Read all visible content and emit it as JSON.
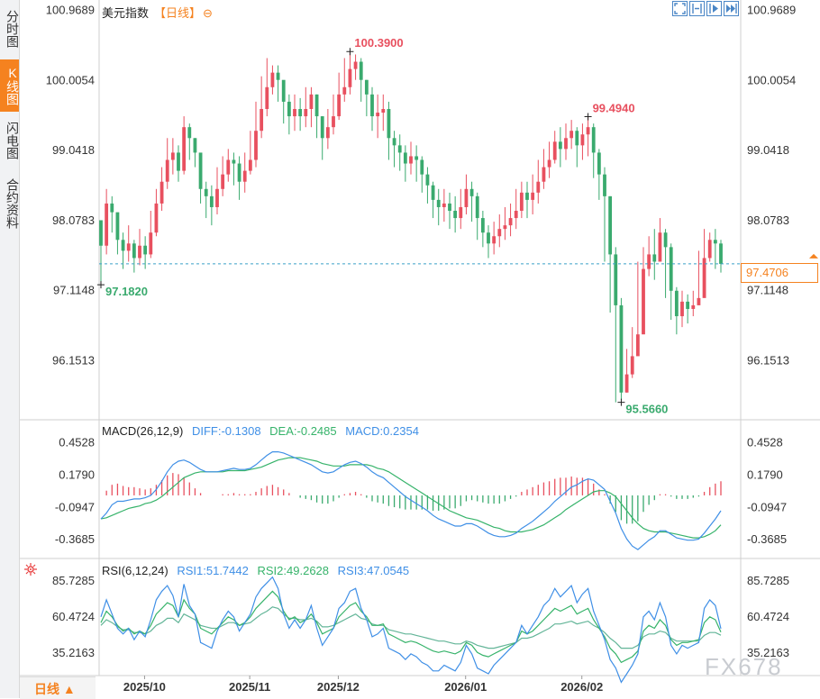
{
  "sidebar": {
    "tabs": [
      {
        "label": "分时图",
        "active": false
      },
      {
        "label": "K线图",
        "active": true
      },
      {
        "label": "闪电图",
        "active": false
      },
      {
        "label": "合约资料",
        "active": false
      }
    ]
  },
  "header": {
    "instrument": "美元指数",
    "period_tag": "【日线】",
    "zoom_icon": "zoom-out-icon"
  },
  "toolbar": {
    "buttons": [
      "fit-icon",
      "range-icon",
      "play-icon",
      "forward-icon"
    ]
  },
  "bottom": {
    "period_label": "日线 ▲"
  },
  "watermark": "FX678",
  "colors": {
    "up": "#e8505f",
    "down": "#3aaa6e",
    "diff": "#3f8fe6",
    "dea": "#36b36a",
    "rsi1": "#3f8fe6",
    "rsi2": "#36b36a",
    "rsi3": "#63b598",
    "accent": "#f5821f"
  },
  "chart_data": [
    {
      "type": "candlestick",
      "panel": "price",
      "y_ticks": [
        "100.9689",
        "100.0054",
        "99.0418",
        "98.0783",
        "97.1148",
        "96.1513"
      ],
      "ylim": [
        95.4,
        101.0
      ],
      "x_ticks": [
        "2025/10",
        "2025/11",
        "2025/12",
        "2026/01",
        "2026/02"
      ],
      "annotations": {
        "high": "100.3900",
        "high2": "99.4940",
        "low": "95.5660",
        "start_low": "97.1820"
      },
      "last_price": "97.4706",
      "series": {
        "close": [
          97.72,
          98.3,
          98.18,
          97.8,
          97.65,
          97.75,
          97.55,
          97.72,
          97.6,
          97.9,
          98.3,
          98.6,
          98.9,
          99.0,
          98.75,
          99.35,
          99.2,
          99.0,
          98.5,
          98.4,
          98.25,
          98.5,
          98.7,
          98.9,
          98.85,
          98.6,
          98.75,
          98.9,
          99.3,
          99.6,
          99.9,
          100.1,
          100.0,
          99.7,
          99.5,
          99.6,
          99.5,
          99.6,
          99.8,
          99.5,
          99.2,
          99.35,
          99.5,
          99.8,
          99.9,
          100.15,
          100.25,
          100.0,
          99.8,
          99.5,
          99.55,
          99.6,
          99.2,
          99.1,
          99.0,
          98.85,
          98.95,
          98.9,
          98.7,
          98.55,
          98.35,
          98.25,
          98.3,
          98.2,
          98.1,
          98.25,
          98.5,
          98.4,
          98.1,
          97.9,
          97.75,
          97.85,
          97.95,
          98.0,
          98.1,
          98.2,
          98.45,
          98.35,
          98.45,
          98.6,
          98.8,
          98.9,
          99.15,
          99.05,
          99.2,
          99.3,
          99.1,
          99.25,
          99.35,
          99.0,
          98.7,
          98.4,
          97.6,
          96.9,
          95.7,
          95.95,
          96.2,
          96.5,
          97.4,
          97.6,
          97.5,
          97.9,
          97.7,
          97.1,
          96.75,
          96.95,
          96.85,
          96.9,
          97.0,
          97.55,
          97.8,
          97.75,
          97.47
        ],
        "high": [
          97.95,
          98.5,
          98.4,
          98.0,
          97.9,
          98.0,
          97.8,
          97.95,
          97.85,
          98.2,
          98.5,
          98.8,
          99.2,
          99.2,
          99.1,
          99.5,
          99.4,
          99.2,
          98.8,
          98.6,
          98.55,
          98.8,
          98.95,
          99.05,
          99.0,
          98.95,
          99.0,
          99.3,
          99.7,
          100.05,
          100.3,
          100.2,
          100.2,
          99.9,
          99.8,
          99.8,
          99.75,
          99.9,
          99.9,
          99.8,
          99.5,
          99.6,
          99.8,
          100.1,
          100.3,
          100.39,
          100.35,
          100.3,
          100.0,
          99.9,
          99.8,
          99.8,
          99.7,
          99.3,
          99.25,
          99.1,
          99.15,
          99.1,
          98.95,
          98.8,
          98.6,
          98.5,
          98.5,
          98.45,
          98.4,
          98.5,
          98.7,
          98.6,
          98.45,
          98.2,
          98.0,
          98.05,
          98.15,
          98.25,
          98.3,
          98.5,
          98.6,
          98.6,
          98.7,
          98.9,
          99.05,
          99.15,
          99.3,
          99.35,
          99.4,
          99.45,
          99.35,
          99.4,
          99.494,
          99.4,
          99.05,
          98.8,
          98.4,
          97.7,
          97.0,
          96.3,
          96.6,
          97.5,
          97.7,
          97.85,
          97.95,
          98.1,
          97.95,
          97.75,
          97.15,
          97.1,
          97.05,
          97.1,
          97.65,
          97.95,
          97.9,
          97.95,
          97.8
        ],
        "low": [
          97.182,
          97.6,
          97.9,
          97.6,
          97.4,
          97.5,
          97.35,
          97.45,
          97.4,
          97.55,
          97.85,
          98.2,
          98.5,
          98.7,
          98.6,
          98.7,
          98.9,
          98.8,
          98.3,
          98.1,
          98.0,
          98.15,
          98.4,
          98.6,
          98.55,
          98.35,
          98.45,
          98.7,
          98.8,
          99.2,
          99.5,
          99.8,
          99.7,
          99.4,
          99.25,
          99.3,
          99.3,
          99.35,
          99.35,
          99.2,
          98.9,
          99.05,
          99.25,
          99.45,
          99.7,
          99.8,
          100.0,
          99.7,
          99.5,
          99.3,
          99.2,
          99.3,
          98.9,
          98.8,
          98.75,
          98.6,
          98.7,
          98.6,
          98.45,
          98.3,
          98.1,
          98.0,
          98.05,
          97.95,
          97.9,
          97.95,
          98.15,
          98.05,
          97.8,
          97.7,
          97.55,
          97.6,
          97.7,
          97.8,
          97.85,
          97.95,
          98.1,
          98.1,
          98.15,
          98.3,
          98.5,
          98.65,
          98.85,
          98.8,
          98.9,
          99.05,
          98.8,
          98.9,
          98.95,
          98.65,
          98.35,
          97.5,
          96.8,
          95.566,
          95.6,
          95.7,
          95.9,
          96.3,
          97.1,
          97.3,
          97.25,
          97.6,
          97.0,
          96.7,
          96.5,
          96.6,
          96.65,
          96.75,
          96.95,
          97.3,
          97.5,
          97.4,
          97.35
        ]
      }
    },
    {
      "type": "line",
      "panel": "macd",
      "title": "MACD(26,12,9)",
      "legend": [
        {
          "name": "DIFF",
          "value": "-0.1308"
        },
        {
          "name": "DEA",
          "value": "-0.2485"
        },
        {
          "name": "MACD",
          "value": "0.2354"
        }
      ],
      "y_ticks": [
        "0.4528",
        "0.1790",
        "-0.0947",
        "-0.3685"
      ],
      "ylim": [
        -0.52,
        0.55
      ],
      "series": {
        "diff": [
          -0.2,
          -0.15,
          -0.08,
          -0.05,
          -0.05,
          -0.04,
          -0.03,
          -0.03,
          -0.02,
          0.0,
          0.05,
          0.12,
          0.2,
          0.26,
          0.29,
          0.3,
          0.28,
          0.25,
          0.22,
          0.2,
          0.2,
          0.2,
          0.21,
          0.22,
          0.23,
          0.22,
          0.22,
          0.23,
          0.26,
          0.3,
          0.34,
          0.37,
          0.37,
          0.36,
          0.34,
          0.32,
          0.3,
          0.28,
          0.26,
          0.23,
          0.2,
          0.19,
          0.2,
          0.23,
          0.26,
          0.28,
          0.29,
          0.27,
          0.24,
          0.2,
          0.17,
          0.15,
          0.11,
          0.07,
          0.03,
          -0.01,
          -0.04,
          -0.07,
          -0.1,
          -0.13,
          -0.17,
          -0.2,
          -0.22,
          -0.24,
          -0.26,
          -0.26,
          -0.24,
          -0.24,
          -0.26,
          -0.29,
          -0.32,
          -0.34,
          -0.35,
          -0.35,
          -0.34,
          -0.32,
          -0.28,
          -0.25,
          -0.22,
          -0.18,
          -0.14,
          -0.1,
          -0.05,
          -0.01,
          0.03,
          0.07,
          0.09,
          0.12,
          0.14,
          0.13,
          0.09,
          0.05,
          -0.05,
          -0.15,
          -0.28,
          -0.37,
          -0.43,
          -0.46,
          -0.42,
          -0.38,
          -0.35,
          -0.3,
          -0.3,
          -0.33,
          -0.36,
          -0.37,
          -0.38,
          -0.38,
          -0.37,
          -0.32,
          -0.26,
          -0.2,
          -0.13
        ],
        "dea": [
          -0.2,
          -0.19,
          -0.17,
          -0.15,
          -0.13,
          -0.11,
          -0.1,
          -0.09,
          -0.07,
          -0.06,
          -0.04,
          -0.01,
          0.03,
          0.07,
          0.11,
          0.15,
          0.17,
          0.19,
          0.2,
          0.2,
          0.2,
          0.2,
          0.2,
          0.21,
          0.21,
          0.21,
          0.21,
          0.22,
          0.23,
          0.24,
          0.26,
          0.28,
          0.3,
          0.31,
          0.32,
          0.32,
          0.32,
          0.31,
          0.3,
          0.29,
          0.27,
          0.26,
          0.25,
          0.25,
          0.25,
          0.26,
          0.26,
          0.26,
          0.26,
          0.25,
          0.23,
          0.22,
          0.2,
          0.17,
          0.14,
          0.11,
          0.08,
          0.05,
          0.02,
          -0.01,
          -0.04,
          -0.07,
          -0.1,
          -0.13,
          -0.15,
          -0.17,
          -0.19,
          -0.2,
          -0.21,
          -0.23,
          -0.25,
          -0.27,
          -0.28,
          -0.3,
          -0.31,
          -0.31,
          -0.31,
          -0.3,
          -0.29,
          -0.27,
          -0.25,
          -0.22,
          -0.19,
          -0.16,
          -0.12,
          -0.09,
          -0.06,
          -0.03,
          0.0,
          0.03,
          0.04,
          0.04,
          0.02,
          -0.01,
          -0.07,
          -0.13,
          -0.19,
          -0.24,
          -0.28,
          -0.3,
          -0.31,
          -0.31,
          -0.31,
          -0.32,
          -0.33,
          -0.34,
          -0.35,
          -0.36,
          -0.36,
          -0.35,
          -0.33,
          -0.3,
          -0.25
        ]
      }
    },
    {
      "type": "line",
      "panel": "rsi",
      "title": "RSI(6,12,24)",
      "legend": [
        {
          "name": "RSI1",
          "value": "51.7442"
        },
        {
          "name": "RSI2",
          "value": "49.2628"
        },
        {
          "name": "RSI3",
          "value": "47.0545"
        }
      ],
      "y_ticks": [
        "85.7285",
        "60.4724",
        "35.2163"
      ],
      "ylim": [
        20,
        96
      ],
      "series": {
        "rsi1": [
          60,
          72,
          62,
          52,
          48,
          52,
          44,
          50,
          46,
          58,
          72,
          78,
          82,
          75,
          60,
          83,
          68,
          62,
          42,
          40,
          38,
          50,
          58,
          64,
          60,
          50,
          56,
          62,
          74,
          80,
          84,
          88,
          80,
          62,
          52,
          58,
          52,
          58,
          68,
          52,
          40,
          46,
          52,
          66,
          70,
          78,
          80,
          66,
          58,
          46,
          48,
          52,
          38,
          36,
          34,
          30,
          34,
          32,
          28,
          26,
          22,
          22,
          26,
          24,
          22,
          28,
          40,
          34,
          24,
          22,
          20,
          26,
          30,
          34,
          38,
          42,
          54,
          48,
          54,
          60,
          68,
          72,
          80,
          74,
          78,
          82,
          70,
          76,
          80,
          64,
          54,
          44,
          30,
          24,
          14,
          20,
          26,
          34,
          60,
          64,
          58,
          70,
          60,
          40,
          34,
          40,
          38,
          40,
          42,
          66,
          72,
          68,
          51.7
        ],
        "rsi2": [
          56,
          64,
          60,
          54,
          50,
          52,
          48,
          50,
          48,
          54,
          62,
          66,
          70,
          68,
          60,
          72,
          66,
          62,
          52,
          50,
          48,
          52,
          56,
          60,
          58,
          54,
          56,
          60,
          66,
          70,
          74,
          78,
          74,
          64,
          58,
          60,
          56,
          58,
          62,
          56,
          48,
          50,
          52,
          60,
          64,
          68,
          70,
          64,
          60,
          54,
          54,
          55,
          48,
          46,
          44,
          42,
          43,
          42,
          40,
          38,
          36,
          35,
          36,
          35,
          34,
          36,
          42,
          40,
          35,
          33,
          32,
          34,
          36,
          38,
          40,
          42,
          50,
          48,
          50,
          54,
          58,
          62,
          66,
          64,
          66,
          68,
          62,
          64,
          66,
          58,
          52,
          46,
          38,
          34,
          28,
          30,
          32,
          36,
          50,
          54,
          52,
          58,
          54,
          44,
          40,
          42,
          42,
          43,
          44,
          56,
          60,
          58,
          49.3
        ],
        "rsi3": [
          54,
          58,
          56,
          53,
          51,
          51,
          49,
          49,
          48,
          50,
          54,
          56,
          59,
          59,
          56,
          62,
          60,
          58,
          54,
          53,
          52,
          52,
          54,
          56,
          56,
          54,
          55,
          56,
          59,
          62,
          64,
          67,
          66,
          62,
          59,
          59,
          58,
          58,
          59,
          57,
          53,
          53,
          54,
          56,
          58,
          60,
          62,
          59,
          58,
          55,
          54,
          54,
          51,
          50,
          49,
          48,
          48,
          47,
          46,
          45,
          44,
          43,
          43,
          42,
          41,
          41,
          43,
          42,
          40,
          39,
          38,
          38,
          39,
          40,
          41,
          42,
          45,
          45,
          46,
          48,
          50,
          52,
          55,
          55,
          56,
          57,
          55,
          56,
          57,
          54,
          52,
          49,
          45,
          42,
          38,
          38,
          38,
          40,
          46,
          48,
          48,
          50,
          49,
          45,
          43,
          43,
          43,
          43,
          43,
          47,
          49,
          49,
          47.1
        ]
      }
    }
  ]
}
